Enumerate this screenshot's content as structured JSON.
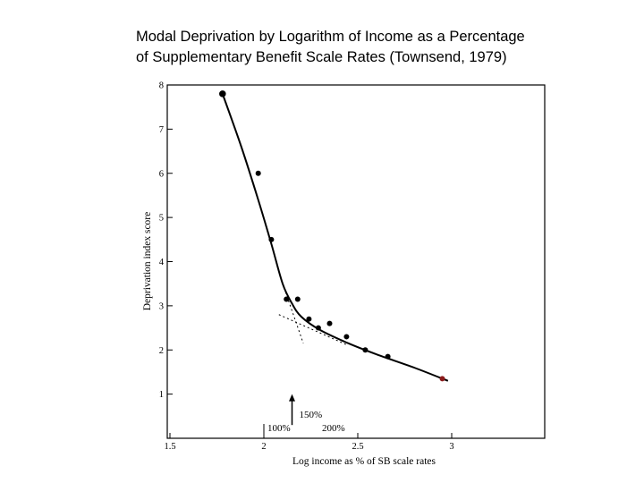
{
  "title_line1": "Modal Deprivation by Logarithm of Income as a Percentage",
  "title_line2": "of Supplementary Benefit Scale Rates (Townsend, 1979)",
  "chart_data": {
    "type": "scatter",
    "title": "Modal Deprivation by Logarithm of Income as a Percentage of Supplementary Benefit Scale Rates (Townsend, 1979)",
    "xlabel": "Log income as % of SB scale rates",
    "ylabel": "Deprivation index score",
    "xlim": [
      1.5,
      3.5
    ],
    "ylim": [
      0,
      8
    ],
    "xticks": [
      1.5,
      2,
      2.5,
      3
    ],
    "xtick_labels": [
      "1.5",
      "2",
      "2.5",
      "3"
    ],
    "yticks": [
      1,
      2,
      3,
      4,
      5,
      6,
      7,
      8
    ],
    "ytick_labels": [
      "1",
      "2",
      "3",
      "4",
      "5",
      "6",
      "7",
      "8"
    ],
    "points": [
      {
        "x": 1.78,
        "y": 7.8
      },
      {
        "x": 1.97,
        "y": 6.0
      },
      {
        "x": 2.04,
        "y": 4.5
      },
      {
        "x": 2.12,
        "y": 3.15
      },
      {
        "x": 2.18,
        "y": 3.15
      },
      {
        "x": 2.24,
        "y": 2.7
      },
      {
        "x": 2.29,
        "y": 2.5
      },
      {
        "x": 2.35,
        "y": 2.6
      },
      {
        "x": 2.44,
        "y": 2.3
      },
      {
        "x": 2.54,
        "y": 2.0
      },
      {
        "x": 2.66,
        "y": 1.85
      },
      {
        "x": 2.95,
        "y": 1.35
      }
    ],
    "fitted_curve": [
      {
        "x": 1.78,
        "y": 7.8
      },
      {
        "x": 1.88,
        "y": 6.6
      },
      {
        "x": 1.97,
        "y": 5.4
      },
      {
        "x": 2.04,
        "y": 4.4
      },
      {
        "x": 2.1,
        "y": 3.5
      },
      {
        "x": 2.15,
        "y": 3.05
      },
      {
        "x": 2.2,
        "y": 2.75
      },
      {
        "x": 2.3,
        "y": 2.45
      },
      {
        "x": 2.45,
        "y": 2.15
      },
      {
        "x": 2.6,
        "y": 1.9
      },
      {
        "x": 2.8,
        "y": 1.6
      },
      {
        "x": 2.98,
        "y": 1.3
      }
    ],
    "dashed_lines": [
      {
        "from": {
          "x": 2.1,
          "y": 3.5
        },
        "to": {
          "x": 2.21,
          "y": 2.15
        }
      },
      {
        "from": {
          "x": 2.08,
          "y": 2.8
        },
        "to": {
          "x": 2.45,
          "y": 2.1
        }
      }
    ],
    "annotations": {
      "arrow_label": "150%",
      "arrow_x": 2.15,
      "arrow_y_from": 0.3,
      "arrow_y_to": 1.0,
      "ref_100_label": "100%",
      "ref_100_x": 2.0,
      "ref_200_label": "200%",
      "ref_200_x": 2.3
    }
  }
}
